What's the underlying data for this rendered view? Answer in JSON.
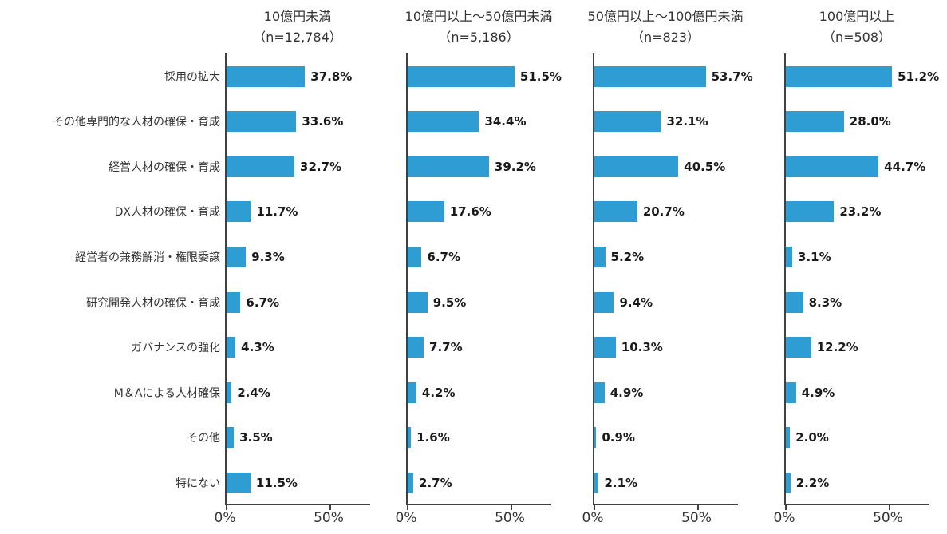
{
  "chart_data": {
    "type": "bar",
    "orientation": "horizontal",
    "title": "",
    "categories": [
      "採用の拡大",
      "その他専門的な人材の確保・育成",
      "経営人材の確保・育成",
      "DX人材の確保・育成",
      "経営者の兼務解消・権限委譲",
      "研究開発人材の確保・育成",
      "ガバナンスの強化",
      "M＆Aによる人材確保",
      "その他",
      "特にない"
    ],
    "panels": [
      {
        "title": "10億円未満",
        "subtitle": "（n=12,784）",
        "values": [
          37.8,
          33.6,
          32.7,
          11.7,
          9.3,
          6.7,
          4.3,
          2.4,
          3.5,
          11.5
        ]
      },
      {
        "title": "10億円以上～50億円未満",
        "subtitle": "（n=5,186）",
        "values": [
          51.5,
          34.4,
          39.2,
          17.6,
          6.7,
          9.5,
          7.7,
          4.2,
          1.6,
          2.7
        ]
      },
      {
        "title": "50億円以上～100億円未満",
        "subtitle": "（n=823）",
        "values": [
          53.7,
          32.1,
          40.5,
          20.7,
          5.2,
          9.4,
          10.3,
          4.9,
          0.9,
          2.1
        ]
      },
      {
        "title": "100億円以上",
        "subtitle": "（n=508）",
        "values": [
          51.2,
          28.0,
          44.7,
          23.2,
          3.1,
          8.3,
          12.2,
          4.9,
          2.0,
          2.2
        ]
      }
    ],
    "xlim": [
      0,
      70
    ],
    "x_ticks": [
      "0%",
      "50%"
    ],
    "x_tick_values": [
      0,
      50
    ],
    "value_suffix": "%",
    "value_decimals": 1,
    "bar_color": "#2d9dd3",
    "axis_color": "#404040",
    "grid": false,
    "legend": false
  }
}
